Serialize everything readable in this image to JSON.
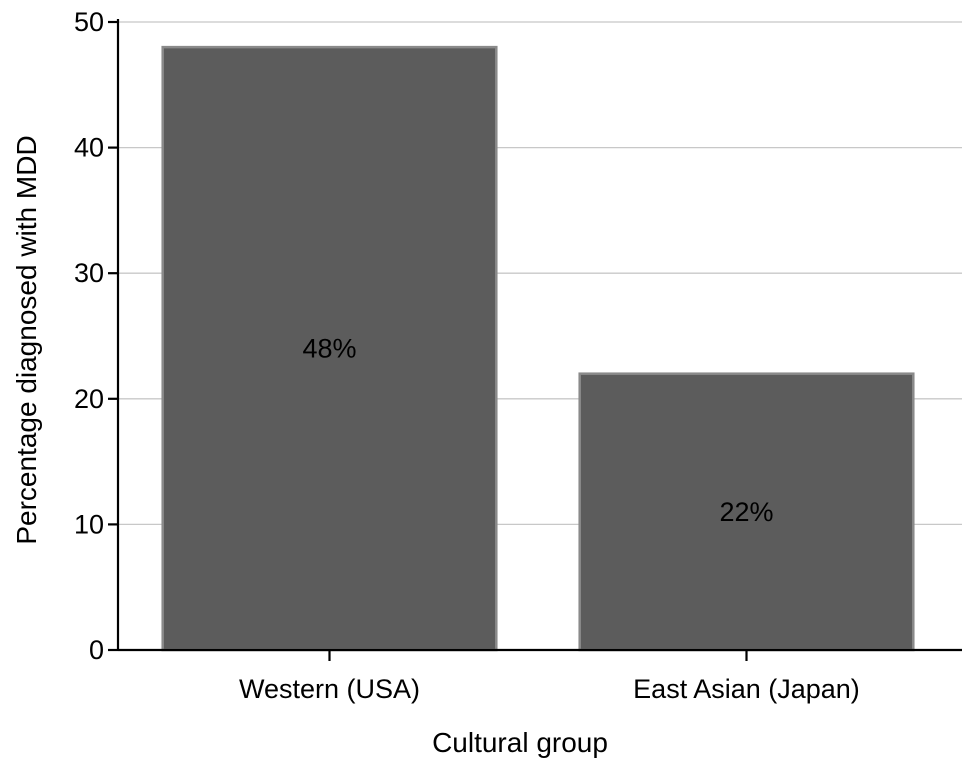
{
  "chart_data": {
    "type": "bar",
    "categories": [
      "Western (USA)",
      "East Asian (Japan)"
    ],
    "values": [
      48,
      22
    ],
    "data_labels": [
      "48%",
      "22%"
    ],
    "xlabel": "Cultural group",
    "ylabel": "Percentage diagnosed with MDD",
    "ylim": [
      0,
      50
    ],
    "yticks": [
      0,
      10,
      20,
      30,
      40,
      50
    ],
    "grid": true,
    "legend": "none",
    "colors": {
      "bar_fill": "#5c5c5c",
      "bar_stroke": "#8a8a8a",
      "grid": "#c8c8c8",
      "axis": "#000000",
      "background": "#ffffff"
    }
  }
}
